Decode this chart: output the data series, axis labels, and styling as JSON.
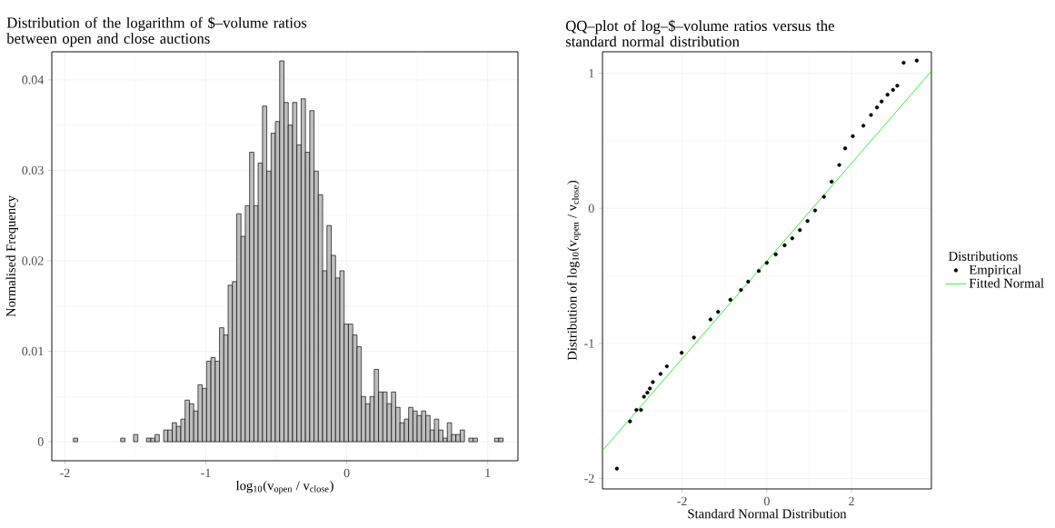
{
  "chart_data": [
    {
      "type": "histogram",
      "title": "Distribution of the logarithm of $–volume ratios between open and close auctions",
      "xlabel": "log$_{10}$(v$_{open}$ / v$_{close}$)",
      "ylabel": "Normalised Frequency",
      "color": "#bebebe",
      "bins": [
        -1.94,
        -1.9095,
        -1.879,
        -1.8485,
        -1.818,
        -1.7875,
        -1.757,
        -1.7265,
        -1.696,
        -1.6655,
        -1.635,
        -1.6045,
        -1.574,
        -1.5435,
        -1.513,
        -1.4825,
        -1.452,
        -1.4215,
        -1.391,
        -1.3605,
        -1.33,
        -1.2995,
        -1.269,
        -1.2385,
        -1.208,
        -1.1775,
        -1.147,
        -1.1165,
        -1.086,
        -1.0555,
        -1.025,
        -0.9945,
        -0.964,
        -0.9335,
        -0.903,
        -0.8725,
        -0.842,
        -0.8115,
        -0.781,
        -0.7505,
        -0.72,
        -0.6895,
        -0.659,
        -0.6285,
        -0.598,
        -0.5675,
        -0.537,
        -0.5065,
        -0.476,
        -0.4455,
        -0.415,
        -0.3845,
        -0.354,
        -0.3235,
        -0.293,
        -0.2625,
        -0.232,
        -0.2015,
        -0.171,
        -0.1405,
        -0.11,
        -0.0795,
        -0.049,
        -0.0185,
        0.012,
        0.0425,
        0.073,
        0.1035,
        0.134,
        0.1645,
        0.195,
        0.2255,
        0.256,
        0.2865,
        0.317,
        0.3475,
        0.378,
        0.4085,
        0.439,
        0.4695,
        0.5,
        0.5305,
        0.561,
        0.5915,
        0.622,
        0.6525,
        0.683,
        0.7135,
        0.744,
        0.7745,
        0.805,
        0.8355,
        0.866,
        0.8965,
        0.927,
        0.9575,
        0.988,
        1.0185,
        1.049,
        1.0795,
        1.11
      ],
      "values": [
        0.0004,
        0,
        0,
        0,
        0,
        0,
        0,
        0,
        0,
        0,
        0,
        0.0004,
        0,
        0,
        0.0008,
        0,
        0,
        0.0004,
        0.0004,
        0.0008,
        0,
        0.0013,
        0.0013,
        0.0021,
        0.0017,
        0.0025,
        0.0046,
        0.0042,
        0.0034,
        0.0063,
        0.0059,
        0.0089,
        0.0093,
        0.0089,
        0.0126,
        0.0118,
        0.0173,
        0.0177,
        0.0252,
        0.0227,
        0.0261,
        0.032,
        0.0261,
        0.0308,
        0.0371,
        0.0299,
        0.0341,
        0.0354,
        0.0421,
        0.0375,
        0.035,
        0.0375,
        0.0328,
        0.0379,
        0.032,
        0.0366,
        0.0299,
        0.0273,
        0.0189,
        0.0239,
        0.0206,
        0.0181,
        0.0189,
        0.013,
        0.013,
        0.0118,
        0.0105,
        0.005,
        0.0042,
        0.005,
        0.008,
        0.0055,
        0.0055,
        0.0042,
        0.0055,
        0.0038,
        0.0021,
        0.0025,
        0.0038,
        0.0034,
        0.0029,
        0.0034,
        0.0029,
        0.0013,
        0.0025,
        0.0013,
        0.0004,
        0.0021,
        0.0008,
        0.0008,
        0.0013,
        0,
        0.0004,
        0.0004,
        0,
        0,
        0,
        0,
        0.0004,
        0.0004
      ],
      "xlim": [
        -2.093,
        1.215
      ],
      "ylim": [
        -0.0021,
        0.0431
      ],
      "xticks": [
        -2,
        -1,
        0,
        1
      ],
      "yticks": [
        0,
        0.01,
        0.02,
        0.03,
        0.04
      ],
      "grid": true
    },
    {
      "type": "scatter",
      "title": "QQ–plot of log–$–volume ratios versus the standard normal distribution",
      "xlabel": "Standard Normal Distribution",
      "ylabel": "Distribution of log$_{10}$(v$_{open}$ / v$_{close}$)",
      "legend_title": "Distributions",
      "legend": "right",
      "grid": true,
      "xlim": [
        -3.88,
        3.886
      ],
      "ylim": [
        -2.078,
        1.159
      ],
      "xticks": [
        -2,
        0,
        2
      ],
      "yticks": [
        -2,
        -1,
        0,
        1
      ],
      "series": [
        {
          "name": "Empirical",
          "marker": "circle",
          "color": "#000000",
          "x": [
            -3.54,
            -3.23,
            -3.08,
            -2.97,
            -2.9,
            -2.82,
            -2.76,
            -2.69,
            -2.51,
            -2.36,
            -2.01,
            -1.72,
            -1.33,
            -1.15,
            -0.86,
            -0.61,
            -0.44,
            -0.19,
            0,
            0.21,
            0.42,
            0.6,
            0.78,
            0.96,
            1.14,
            1.35,
            1.53,
            1.71,
            1.85,
            2.03,
            2.28,
            2.46,
            2.6,
            2.71,
            2.85,
            2.98,
            3.08,
            3.23,
            3.54
          ],
          "values": [
            -1.928,
            -1.578,
            -1.493,
            -1.493,
            -1.395,
            -1.365,
            -1.334,
            -1.287,
            -1.226,
            -1.17,
            -1.07,
            -0.957,
            -0.823,
            -0.767,
            -0.677,
            -0.605,
            -0.543,
            -0.464,
            -0.404,
            -0.341,
            -0.274,
            -0.222,
            -0.161,
            -0.094,
            -0.016,
            0.085,
            0.197,
            0.321,
            0.444,
            0.534,
            0.612,
            0.691,
            0.747,
            0.791,
            0.841,
            0.877,
            0.908,
            1.078,
            1.094
          ]
        },
        {
          "name": "Fitted Normal",
          "type": "line",
          "marker": "none",
          "color": "#00ee00",
          "x": [
            -3.88,
            3.886
          ],
          "values": [
            -1.794,
            1.016
          ]
        }
      ]
    }
  ]
}
